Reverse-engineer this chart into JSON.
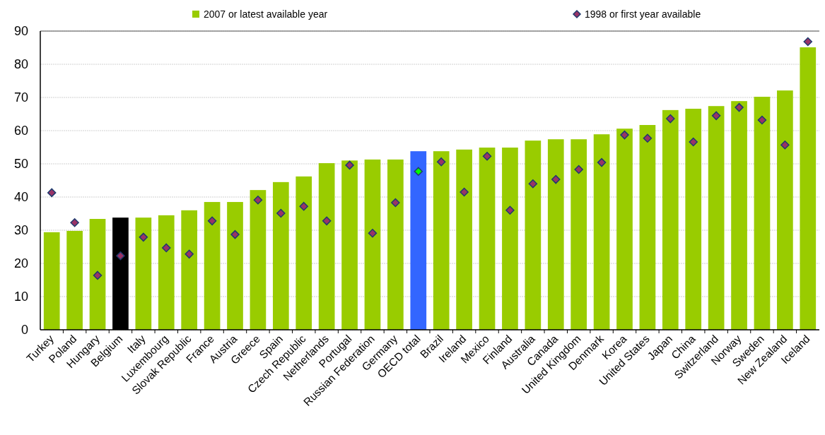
{
  "chart_data": {
    "type": "bar",
    "categories": [
      "Turkey",
      "Poland",
      "Hungary",
      "Belgium",
      "Italy",
      "Luxembourg",
      "Slovak Republic",
      "France",
      "Austria",
      "Greece",
      "Spain",
      "Czech Republic",
      "Netherlands",
      "Portugal",
      "Russian Federation",
      "Germany",
      "OECD total",
      "Brazil",
      "Ireland",
      "Mexico",
      "Finland",
      "Australia",
      "Canada",
      "United Kingdom",
      "Denmark",
      "Korea",
      "United States",
      "Japan",
      "China",
      "Switzerland",
      "Norway",
      "Sweden",
      "New Zealand",
      "Iceland"
    ],
    "series": [
      {
        "name": "2007 or latest available year",
        "color": "#99cc00",
        "colors": [
          "#99cc00",
          "#99cc00",
          "#99cc00",
          "#000000",
          "#99cc00",
          "#99cc00",
          "#99cc00",
          "#99cc00",
          "#99cc00",
          "#99cc00",
          "#99cc00",
          "#99cc00",
          "#99cc00",
          "#99cc00",
          "#99cc00",
          "#99cc00",
          "#3366ff",
          "#99cc00",
          "#99cc00",
          "#99cc00",
          "#99cc00",
          "#99cc00",
          "#99cc00",
          "#99cc00",
          "#99cc00",
          "#99cc00",
          "#99cc00",
          "#99cc00",
          "#99cc00",
          "#99cc00",
          "#99cc00",
          "#99cc00",
          "#99cc00",
          "#99cc00"
        ],
        "values": [
          29.4,
          29.8,
          33.4,
          33.8,
          33.8,
          34.5,
          36,
          38.5,
          38.5,
          42.1,
          44.5,
          46.2,
          50.2,
          51,
          51.3,
          51.3,
          53.8,
          53.8,
          54.3,
          54.9,
          54.9,
          57,
          57.4,
          57.4,
          58.9,
          60.6,
          61.7,
          66.2,
          66.6,
          67.4,
          68.9,
          70.2,
          72.1,
          85.1
        ]
      },
      {
        "name": "1998 or first year available",
        "type": "scatter",
        "marker": "diamond",
        "color": "#993366",
        "colors": [
          "#993366",
          "#993366",
          "#993366",
          "#993366",
          "#993366",
          "#993366",
          "#993366",
          "#993366",
          "#993366",
          "#993366",
          "#993366",
          "#993366",
          "#993366",
          "#993366",
          "#993366",
          "#993366",
          "#00ff00",
          "#993366",
          "#993366",
          "#993366",
          "#993366",
          "#993366",
          "#993366",
          "#993366",
          "#993366",
          "#993366",
          "#993366",
          "#993366",
          "#993366",
          "#993366",
          "#993366",
          "#993366",
          "#993366",
          "#993366"
        ],
        "values": [
          41.3,
          32.3,
          16.4,
          22.3,
          27.9,
          24.7,
          22.8,
          32.8,
          28.7,
          39.1,
          35.1,
          37.2,
          32.8,
          49.6,
          29.1,
          38.3,
          47.7,
          50.6,
          41.5,
          52.3,
          36,
          44,
          45.3,
          48.3,
          50.4,
          58.7,
          57.7,
          63.6,
          56.6,
          64.5,
          67,
          63.2,
          55.7,
          86.8
        ]
      }
    ],
    "ylim": [
      0,
      90
    ],
    "yticks": [
      0,
      10,
      20,
      30,
      40,
      50,
      60,
      70,
      80,
      90
    ],
    "grid": "y",
    "legend": "top"
  }
}
